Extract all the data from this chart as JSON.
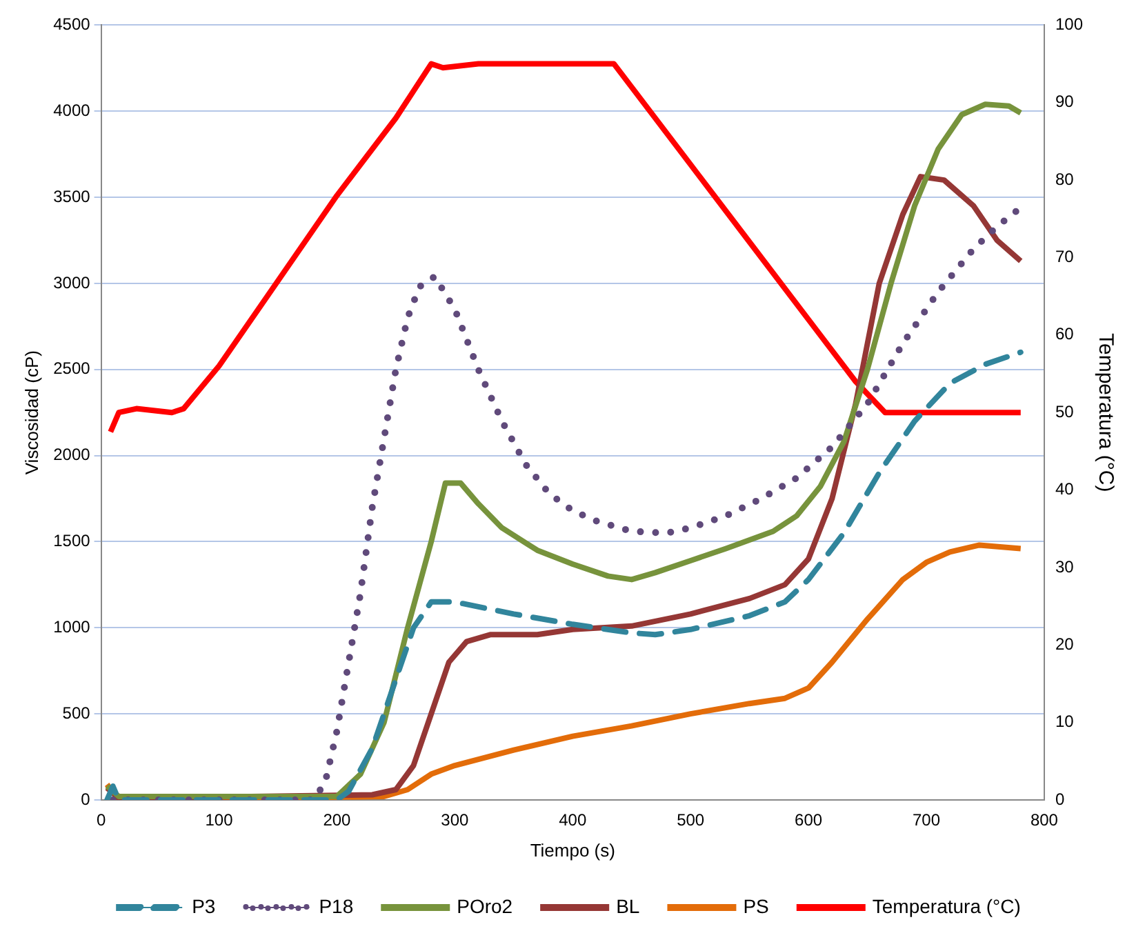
{
  "chart_data": {
    "type": "line",
    "xlabel": "Tiempo (s)",
    "ylabel": "Viscosidad (cP)",
    "y2label": "Temperatura (°C)",
    "xlim": [
      0,
      800
    ],
    "xticks": [
      0,
      100,
      200,
      300,
      400,
      500,
      600,
      700,
      800
    ],
    "ylim": [
      0,
      4500
    ],
    "yticks": [
      0,
      500,
      1000,
      1500,
      2000,
      2500,
      3000,
      3500,
      4000,
      4500
    ],
    "y2lim": [
      0,
      100
    ],
    "y2ticks": [
      0,
      10,
      20,
      30,
      40,
      50,
      60,
      70,
      80,
      90,
      100
    ],
    "grid": "y",
    "legend": "bottom",
    "marker": "none",
    "series": [
      {
        "name": "P3",
        "color": "#31859c",
        "line_style": "dashed",
        "x": [
          5,
          10,
          15,
          200,
          210,
          230,
          250,
          265,
          280,
          300,
          350,
          400,
          450,
          470,
          500,
          550,
          580,
          600,
          630,
          660,
          690,
          720,
          750,
          780
        ],
        "values": [
          0,
          80,
          0,
          0,
          50,
          300,
          700,
          1000,
          1150,
          1150,
          1080,
          1020,
          970,
          960,
          990,
          1070,
          1150,
          1280,
          1550,
          1900,
          2200,
          2420,
          2530,
          2600
        ]
      },
      {
        "name": "P18",
        "color": "#604a7b",
        "line_style": "dotted",
        "x": [
          10,
          180,
          190,
          200,
          210,
          220,
          230,
          240,
          250,
          260,
          270,
          283,
          300,
          320,
          340,
          360,
          380,
          400,
          420,
          450,
          480,
          500,
          530,
          560,
          590,
          620,
          650,
          680,
          710,
          740,
          760,
          780
        ],
        "values": [
          0,
          0,
          100,
          400,
          800,
          1200,
          1700,
          2100,
          2500,
          2800,
          2980,
          3040,
          2850,
          2500,
          2200,
          1950,
          1780,
          1680,
          1620,
          1560,
          1550,
          1580,
          1650,
          1750,
          1870,
          2050,
          2300,
          2650,
          2950,
          3200,
          3330,
          3440
        ]
      },
      {
        "name": "POro2",
        "color": "#77933c",
        "line_style": "solid",
        "x": [
          5,
          15,
          200,
          220,
          240,
          260,
          280,
          292,
          305,
          320,
          340,
          370,
          400,
          430,
          450,
          470,
          500,
          530,
          570,
          590,
          610,
          630,
          650,
          670,
          690,
          710,
          730,
          750,
          770,
          780
        ],
        "values": [
          80,
          20,
          20,
          150,
          450,
          1000,
          1500,
          1840,
          1840,
          1720,
          1580,
          1450,
          1370,
          1300,
          1280,
          1320,
          1390,
          1460,
          1560,
          1650,
          1820,
          2080,
          2500,
          3000,
          3450,
          3780,
          3980,
          4040,
          4030,
          3990
        ]
      },
      {
        "name": "BL",
        "color": "#953735",
        "line_style": "solid",
        "x": [
          5,
          15,
          230,
          250,
          265,
          280,
          295,
          310,
          330,
          370,
          400,
          450,
          500,
          550,
          580,
          600,
          620,
          640,
          660,
          680,
          695,
          715,
          740,
          760,
          780
        ],
        "values": [
          70,
          10,
          30,
          60,
          200,
          500,
          800,
          920,
          960,
          960,
          990,
          1010,
          1080,
          1170,
          1250,
          1400,
          1750,
          2300,
          3000,
          3400,
          3620,
          3600,
          3450,
          3250,
          3130
        ]
      },
      {
        "name": "PS",
        "color": "#e36c09",
        "line_style": "solid",
        "x": [
          5,
          15,
          240,
          260,
          280,
          300,
          350,
          400,
          450,
          500,
          550,
          580,
          600,
          620,
          650,
          680,
          700,
          720,
          745,
          780
        ],
        "values": [
          90,
          0,
          20,
          60,
          150,
          200,
          290,
          370,
          430,
          500,
          560,
          590,
          650,
          800,
          1050,
          1280,
          1380,
          1440,
          1480,
          1460
        ]
      },
      {
        "name": "Temperatura (°C)",
        "color": "#ff0000",
        "line_style": "solid",
        "axis": "y2",
        "x": [
          8,
          15,
          30,
          60,
          70,
          100,
          150,
          200,
          250,
          280,
          290,
          320,
          435,
          500,
          550,
          600,
          640,
          665,
          720,
          780
        ],
        "values": [
          47.5,
          50,
          50.5,
          50,
          50.5,
          56,
          67,
          78,
          88,
          95,
          94.5,
          95,
          95,
          82,
          72,
          62,
          54,
          50,
          50,
          50
        ]
      }
    ]
  }
}
